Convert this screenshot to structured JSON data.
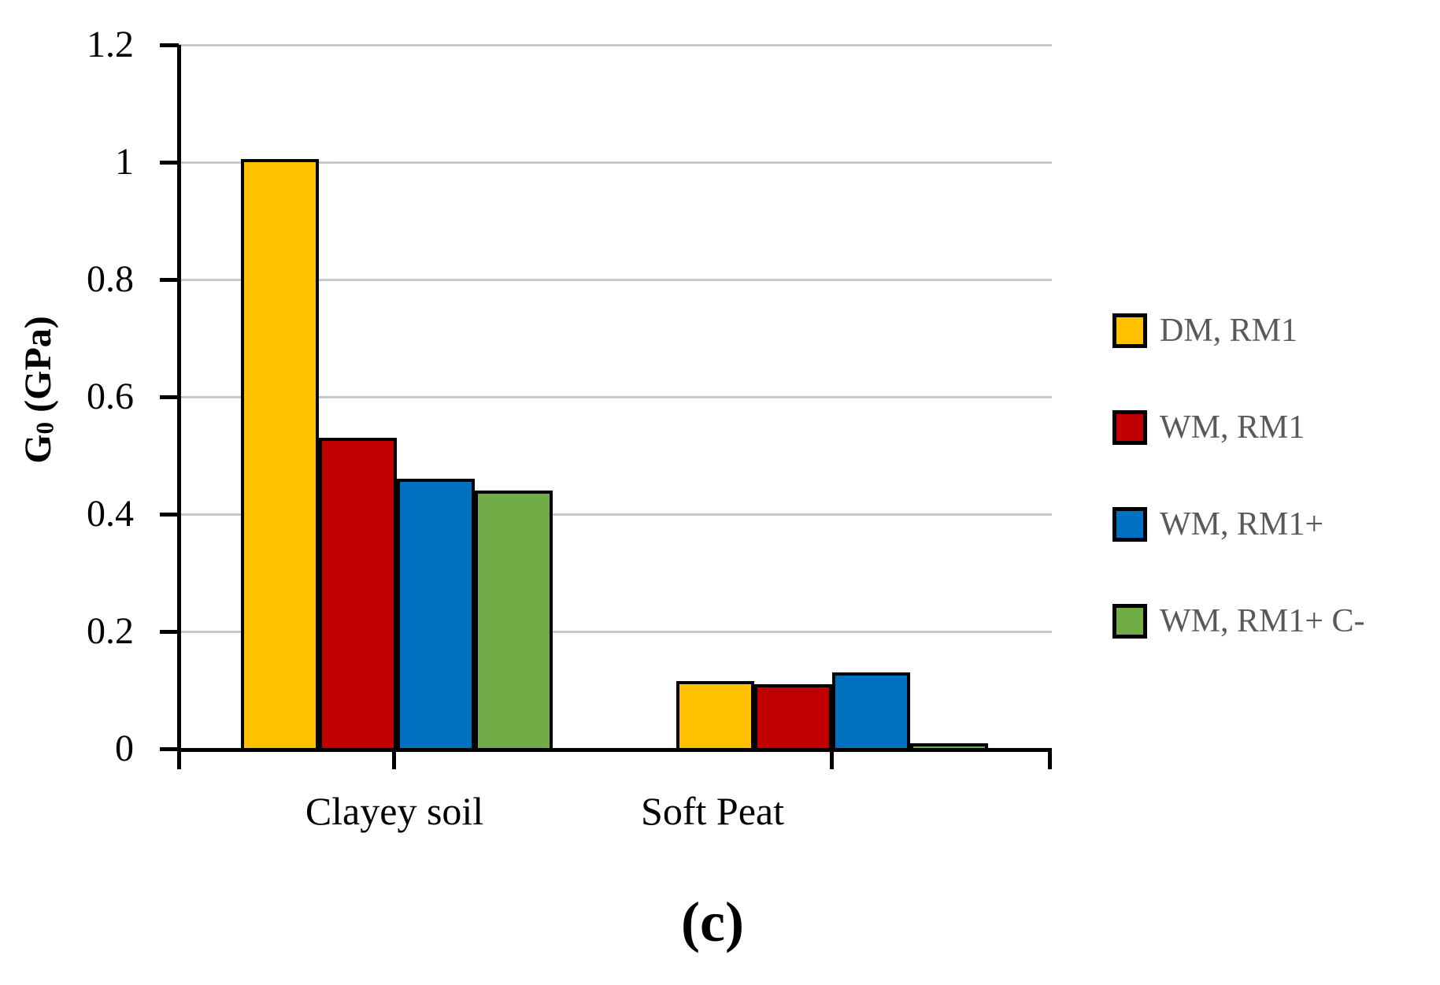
{
  "chart_data": {
    "type": "bar",
    "title": "",
    "categories": [
      "Clayey soil",
      "Soft Peat"
    ],
    "series": [
      {
        "name": "DM, RM1",
        "color": "#FFC000",
        "values": [
          1.005,
          0.115
        ]
      },
      {
        "name": "WM, RM1",
        "color": "#C00000",
        "values": [
          0.53,
          0.11
        ]
      },
      {
        "name": "WM, RM1+",
        "color": "#0070C0",
        "values": [
          0.46,
          0.13
        ]
      },
      {
        "name": "WM, RM1+ C-",
        "color": "#70AD47",
        "values": [
          0.44,
          0.01
        ]
      }
    ],
    "xlabel": "",
    "ylabel": "G0 (GPa)",
    "ylabel_parts": {
      "main": "G",
      "sub": "0",
      "rest": " (GPa)"
    },
    "ylim": [
      0,
      1.2
    ],
    "yticks": [
      0,
      0.2,
      0.4,
      0.6,
      0.8,
      1.0,
      1.2
    ],
    "ytick_labels": [
      "0",
      "0.2",
      "0.4",
      "0.6",
      "0.8",
      "1",
      "1.2"
    ],
    "grid": true,
    "legend_position": "right",
    "caption": "(c)",
    "colors": {
      "axis": "#000000",
      "gridline": "#C9C9C9",
      "legend_text": "#595959",
      "tick_label": "#000000"
    }
  }
}
